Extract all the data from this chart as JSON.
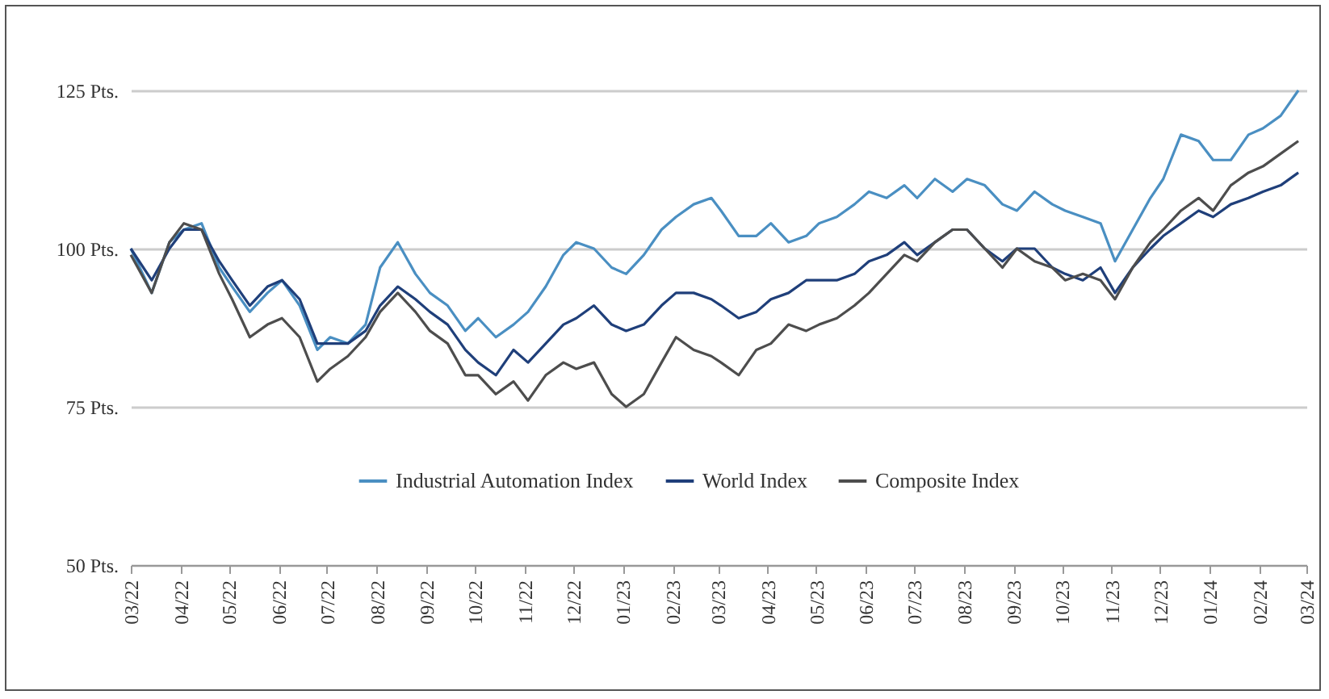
{
  "chart_data": {
    "type": "line",
    "x": [
      "2022-03-01",
      "2022-03-14",
      "2022-03-25",
      "2022-04-03",
      "2022-04-14",
      "2022-04-25",
      "2022-05-03",
      "2022-05-14",
      "2022-05-25",
      "2022-06-03",
      "2022-06-14",
      "2022-06-25",
      "2022-07-03",
      "2022-07-14",
      "2022-07-25",
      "2022-08-03",
      "2022-08-14",
      "2022-08-25",
      "2022-09-03",
      "2022-09-14",
      "2022-09-25",
      "2022-10-03",
      "2022-10-14",
      "2022-10-25",
      "2022-11-03",
      "2022-11-14",
      "2022-11-25",
      "2022-12-03",
      "2022-12-14",
      "2022-12-25",
      "2023-01-03",
      "2023-01-14",
      "2023-01-25",
      "2023-02-03",
      "2023-02-14",
      "2023-02-25",
      "2023-03-03",
      "2023-03-14",
      "2023-03-25",
      "2023-04-03",
      "2023-04-14",
      "2023-04-25",
      "2023-05-03",
      "2023-05-14",
      "2023-05-25",
      "2023-06-03",
      "2023-06-14",
      "2023-06-25",
      "2023-07-03",
      "2023-07-14",
      "2023-07-25",
      "2023-08-03",
      "2023-08-14",
      "2023-08-25",
      "2023-09-03",
      "2023-09-14",
      "2023-09-25",
      "2023-10-03",
      "2023-10-14",
      "2023-10-25",
      "2023-11-03",
      "2023-11-14",
      "2023-11-25",
      "2023-12-03",
      "2023-12-14",
      "2023-12-25",
      "2024-01-03",
      "2024-01-14",
      "2024-01-25",
      "2024-02-03",
      "2024-02-14",
      "2024-02-25"
    ],
    "series": [
      {
        "name": "Industrial Automation Index",
        "color": "#4a8fc2",
        "values": [
          100,
          93,
          101,
          103,
          104,
          97,
          94,
          90,
          93,
          95,
          91,
          84,
          86,
          85,
          88,
          97,
          101,
          96,
          93,
          91,
          87,
          89,
          86,
          88,
          90,
          94,
          99,
          101,
          100,
          97,
          96,
          99,
          103,
          105,
          107,
          108,
          106,
          102,
          102,
          104,
          101,
          102,
          104,
          105,
          107,
          109,
          108,
          110,
          108,
          111,
          109,
          111,
          110,
          107,
          106,
          109,
          107,
          106,
          105,
          104,
          98,
          103,
          108,
          111,
          118,
          117,
          114,
          114,
          118,
          119,
          121,
          125
        ]
      },
      {
        "name": "World Index",
        "color": "#1f3f7a",
        "values": [
          100,
          95,
          100,
          103,
          103,
          98,
          95,
          91,
          94,
          95,
          92,
          85,
          85,
          85,
          87,
          91,
          94,
          92,
          90,
          88,
          84,
          82,
          80,
          84,
          82,
          85,
          88,
          89,
          91,
          88,
          87,
          88,
          91,
          93,
          93,
          92,
          91,
          89,
          90,
          92,
          93,
          95,
          95,
          95,
          96,
          98,
          99,
          101,
          99,
          101,
          103,
          103,
          100,
          98,
          100,
          100,
          97,
          96,
          95,
          97,
          93,
          97,
          100,
          102,
          104,
          106,
          105,
          107,
          108,
          109,
          110,
          112
        ]
      },
      {
        "name": "Composite Index",
        "color": "#4d4d4d",
        "values": [
          99,
          93,
          101,
          104,
          103,
          96,
          92,
          86,
          88,
          89,
          86,
          79,
          81,
          83,
          86,
          90,
          93,
          90,
          87,
          85,
          80,
          80,
          77,
          79,
          76,
          80,
          82,
          81,
          82,
          77,
          75,
          77,
          82,
          86,
          84,
          83,
          82,
          80,
          84,
          85,
          88,
          87,
          88,
          89,
          91,
          93,
          96,
          99,
          98,
          101,
          103,
          103,
          100,
          97,
          100,
          98,
          97,
          95,
          96,
          95,
          92,
          97,
          101,
          103,
          106,
          108,
          106,
          110,
          112,
          113,
          115,
          117
        ]
      }
    ],
    "xlim": [
      "2022-03-01",
      "2024-03-01"
    ],
    "xticks": [
      {
        "value": "2022-03-01",
        "label": "03/22"
      },
      {
        "value": "2022-04-01",
        "label": "04/22"
      },
      {
        "value": "2022-05-01",
        "label": "05/22"
      },
      {
        "value": "2022-06-01",
        "label": "06/22"
      },
      {
        "value": "2022-07-01",
        "label": "07/22"
      },
      {
        "value": "2022-08-01",
        "label": "08/22"
      },
      {
        "value": "2022-09-01",
        "label": "09/22"
      },
      {
        "value": "2022-10-01",
        "label": "10/22"
      },
      {
        "value": "2022-11-01",
        "label": "11/22"
      },
      {
        "value": "2022-12-01",
        "label": "12/22"
      },
      {
        "value": "2023-01-01",
        "label": "01/23"
      },
      {
        "value": "2023-02-01",
        "label": "02/23"
      },
      {
        "value": "2023-03-01",
        "label": "03/23"
      },
      {
        "value": "2023-04-01",
        "label": "04/23"
      },
      {
        "value": "2023-05-01",
        "label": "05/23"
      },
      {
        "value": "2023-06-01",
        "label": "06/23"
      },
      {
        "value": "2023-07-01",
        "label": "07/23"
      },
      {
        "value": "2023-08-01",
        "label": "08/23"
      },
      {
        "value": "2023-09-01",
        "label": "09/23"
      },
      {
        "value": "2023-10-01",
        "label": "10/23"
      },
      {
        "value": "2023-11-01",
        "label": "11/23"
      },
      {
        "value": "2023-12-01",
        "label": "12/23"
      },
      {
        "value": "2024-01-01",
        "label": "01/24"
      },
      {
        "value": "2024-02-01",
        "label": "02/24"
      },
      {
        "value": "2024-03-01",
        "label": "03/24"
      }
    ],
    "ylim": [
      50,
      125
    ],
    "yticks": [
      {
        "value": 50,
        "label": "50 Pts."
      },
      {
        "value": 75,
        "label": "75 Pts."
      },
      {
        "value": 100,
        "label": "100 Pts."
      },
      {
        "value": 125,
        "label": "125 Pts."
      }
    ],
    "grid": "y",
    "legend": "bottom",
    "marker": "none",
    "line_style": "solid"
  }
}
